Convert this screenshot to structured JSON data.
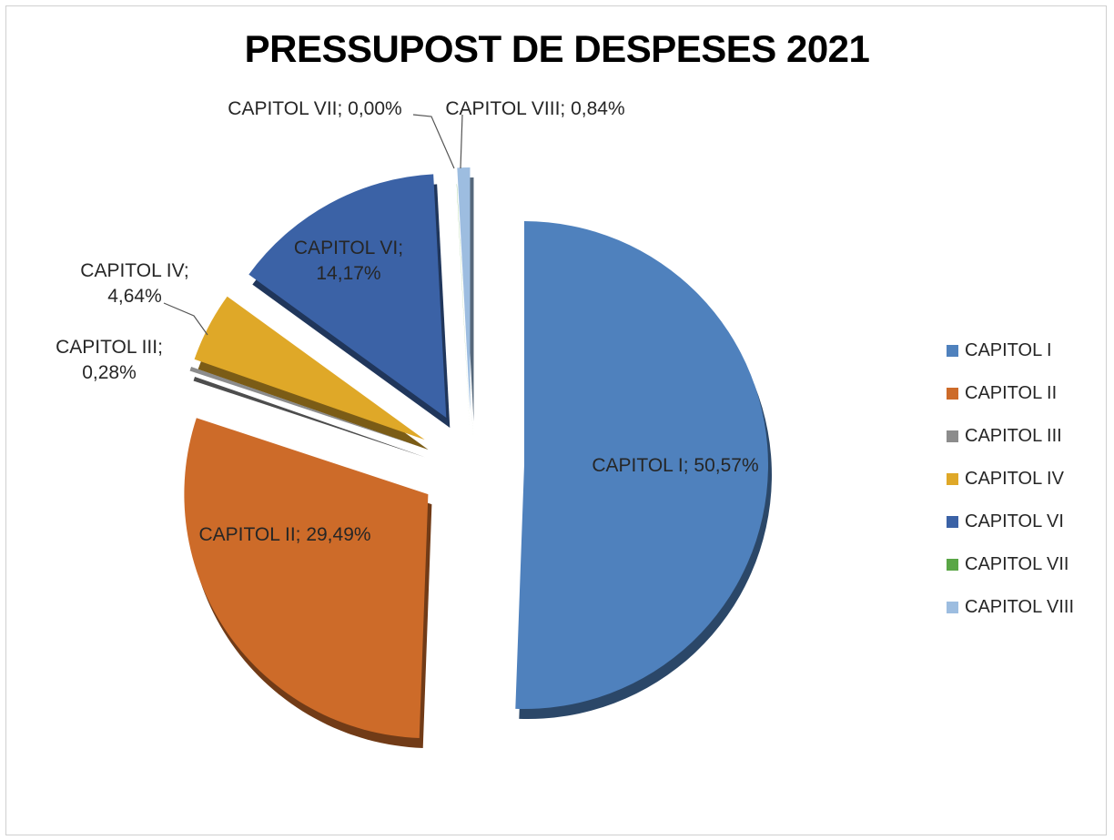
{
  "chart_data": {
    "type": "pie",
    "title": "PRESSUPOST DE DESPESES 2021",
    "slices": [
      {
        "name": "CAPITOL I",
        "value": 50.57,
        "label": "CAPITOL I; 50,57%",
        "color": "#4f81bd"
      },
      {
        "name": "CAPITOL II",
        "value": 29.49,
        "label": "CAPITOL II; 29,49%",
        "color": "#cd6b29"
      },
      {
        "name": "CAPITOL III",
        "value": 0.28,
        "label": "CAPITOL III; 0,28%",
        "color": "#8c8c8c"
      },
      {
        "name": "CAPITOL IV",
        "value": 4.64,
        "label": "CAPITOL IV; 4,64%",
        "color": "#dfa828"
      },
      {
        "name": "CAPITOL VI",
        "value": 14.17,
        "label": "CAPITOL VI; 14,17%",
        "color": "#3b62a6"
      },
      {
        "name": "CAPITOL VII",
        "value": 0.0,
        "label": "CAPITOL VII; 0,00%",
        "color": "#5aa646"
      },
      {
        "name": "CAPITOL VIII",
        "value": 0.84,
        "label": "CAPITOL VIII; 0,84%",
        "color": "#9dbde0"
      }
    ],
    "legend_position": "right",
    "style": "3d-exploded"
  }
}
